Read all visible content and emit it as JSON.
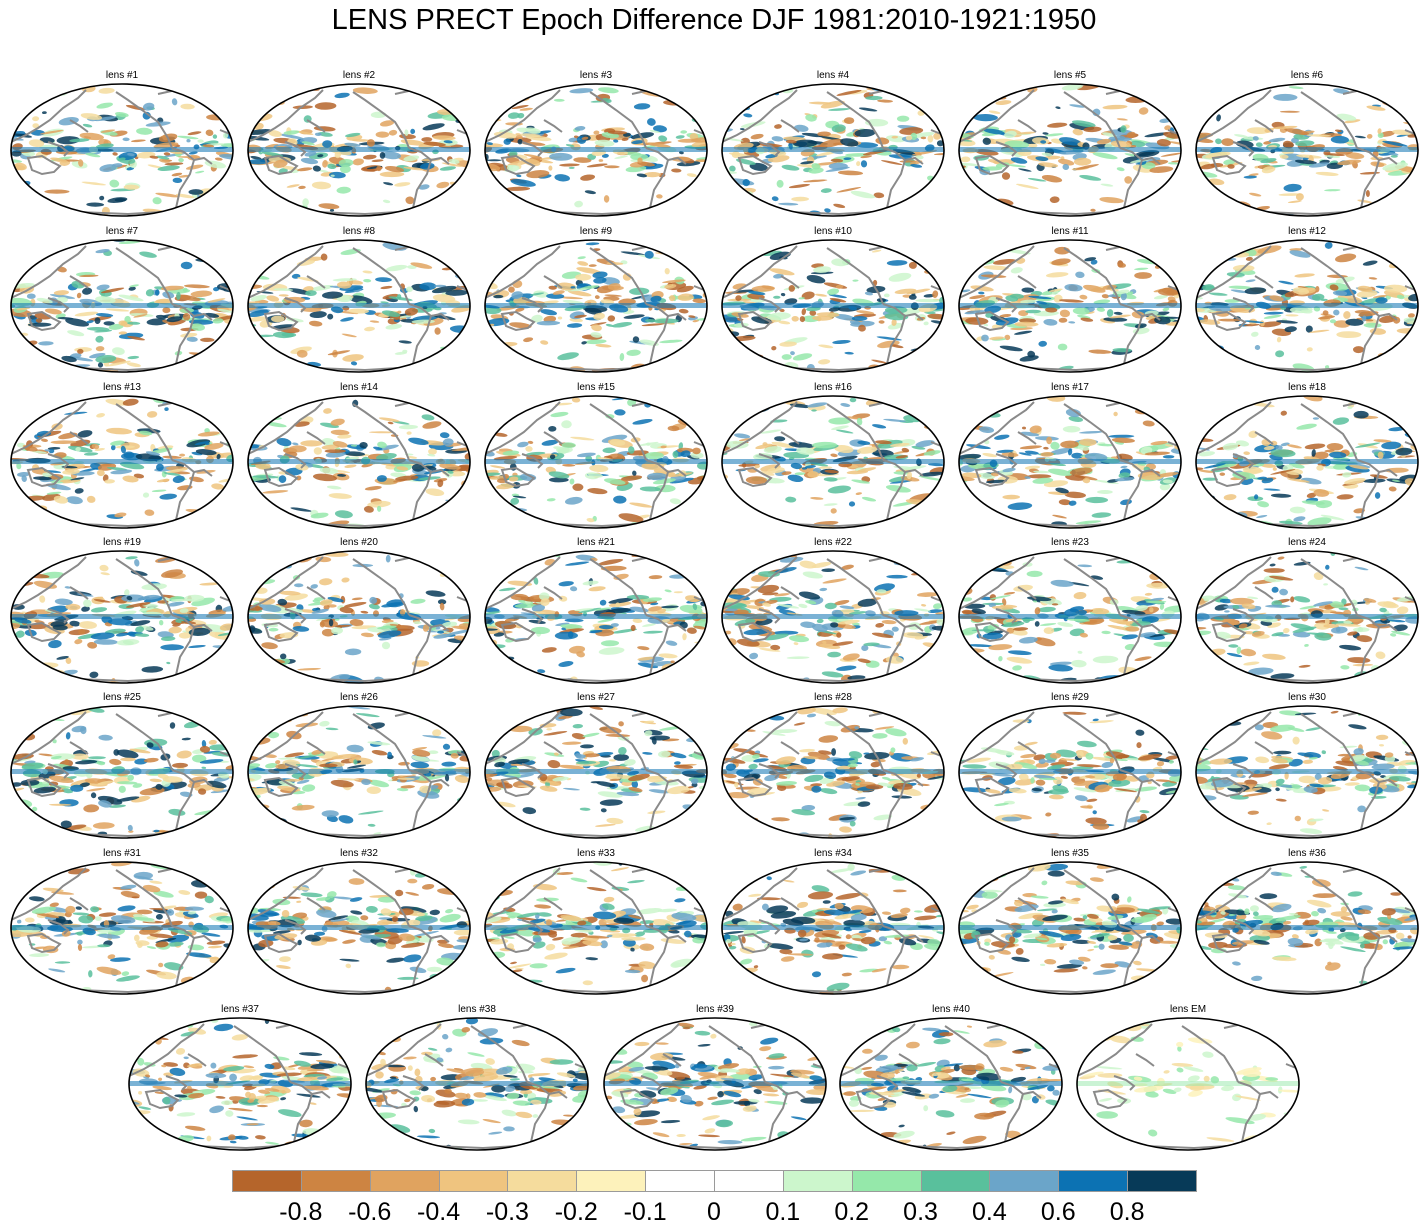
{
  "title": "LENS PRECT Epoch Difference DJF 1981:2010-1921:1950",
  "panels": [
    "lens #1",
    "lens #2",
    "lens #3",
    "lens #4",
    "lens #5",
    "lens #6",
    "lens #7",
    "lens #8",
    "lens #9",
    "lens #10",
    "lens #11",
    "lens #12",
    "lens #13",
    "lens #14",
    "lens #15",
    "lens #16",
    "lens #17",
    "lens #18",
    "lens #19",
    "lens #20",
    "lens #21",
    "lens #22",
    "lens #23",
    "lens #24",
    "lens #25",
    "lens #26",
    "lens #27",
    "lens #28",
    "lens #29",
    "lens #30",
    "lens #31",
    "lens #32",
    "lens #33",
    "lens #34",
    "lens #35",
    "lens #36",
    "lens #37",
    "lens #38",
    "lens #39",
    "lens #40",
    "lens EM"
  ],
  "colorbar": {
    "labels": [
      "-0.8",
      "-0.6",
      "-0.4",
      "-0.3",
      "-0.2",
      "-0.1",
      "0",
      "0.1",
      "0.2",
      "0.3",
      "0.4",
      "0.6",
      "0.8"
    ],
    "colors": [
      "#b5652b",
      "#cd8442",
      "#e0a35f",
      "#efc47f",
      "#f5dc9d",
      "#fdf2bb",
      "#ffffff",
      "#ffffff",
      "#ccf6cc",
      "#95e8aa",
      "#59c09c",
      "#6ba5c9",
      "#0c72b3",
      "#073a58"
    ]
  },
  "map_style": {
    "coast_color": "#8a8a8a",
    "outline_color": "#000000",
    "projection": "global elliptical (Pacific-centered)"
  }
}
